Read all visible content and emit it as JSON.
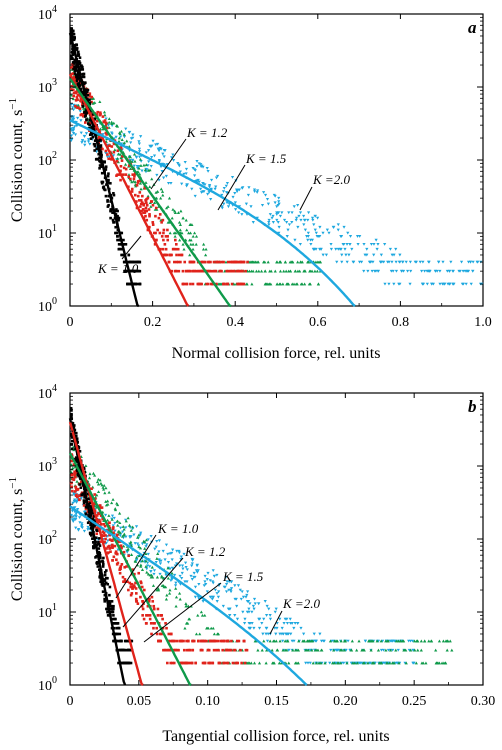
{
  "colors": {
    "K1.0": "#000000",
    "K1.2": "#e0231b",
    "K1.5": "#0f9a4a",
    "K2.0": "#1ea8df"
  },
  "chart_data": [
    {
      "type": "scatter",
      "panel": "a",
      "xlabel": "Normal collision force, rel. units",
      "ylabel": "Collision count, s",
      "ylabel_sup": "−1",
      "yscale": "log",
      "xlim": [
        0,
        1.0
      ],
      "ylim": [
        1,
        10000
      ],
      "x_ticks": [
        "0",
        "0.2",
        "0.4",
        "0.6",
        "0.8",
        "1.0"
      ],
      "x_tick_values": [
        0,
        0.2,
        0.4,
        0.6,
        0.8,
        1.0
      ],
      "y_ticks": [
        {
          "base": "10",
          "exp": "0"
        },
        {
          "base": "10",
          "exp": "1"
        },
        {
          "base": "10",
          "exp": "2"
        },
        {
          "base": "10",
          "exp": "3"
        },
        {
          "base": "10",
          "exp": "4"
        }
      ],
      "series": [
        {
          "name": "K = 1.0",
          "key": "K1.0",
          "label_text": "K = 1.0",
          "fit": {
            "y0": 5500,
            "halfvalue_x": 0.019,
            "curv": 0
          },
          "scatter": {
            "x_max": 0.17,
            "y0": 5000,
            "decay": 0.019
          }
        },
        {
          "name": "K = 1.2",
          "key": "K1.2",
          "label_text": "K = 1.2",
          "fit": {
            "y0": 1500,
            "halfvalue_x": 0.039,
            "curv": 0
          },
          "scatter": {
            "x_max": 0.43,
            "y0": 1300,
            "decay": 0.045
          }
        },
        {
          "name": "K = 1.5",
          "key": "K1.5",
          "label_text": "K = 1.5",
          "fit": {
            "y0": 1300,
            "halfvalue_x": 0.054,
            "curv": 0
          },
          "scatter": {
            "x_max": 0.61,
            "y0": 1200,
            "decay": 0.058
          }
        },
        {
          "name": "K =2.0",
          "key": "K2.0",
          "label_text": "K =2.0",
          "fit": {
            "y0": 350,
            "halfvalue_x": 0.16,
            "curv": 1.15,
            "curv_exp": 4
          },
          "scatter": {
            "x_max": 1.0,
            "y0": 340,
            "decay": 0.17
          }
        }
      ]
    },
    {
      "type": "scatter",
      "panel": "b",
      "xlabel": "Tangential collision force, rel. units",
      "ylabel": "Collision count, s",
      "ylabel_sup": "−1",
      "yscale": "log",
      "xlim": [
        0,
        0.3
      ],
      "ylim": [
        1,
        10000
      ],
      "x_ticks": [
        "0",
        "0.05",
        "0.10",
        "0.15",
        "0.20",
        "0.25",
        "0.30"
      ],
      "x_tick_values": [
        0,
        0.05,
        0.1,
        0.15,
        0.2,
        0.25,
        0.3
      ],
      "y_ticks": [
        {
          "base": "10",
          "exp": "0"
        },
        {
          "base": "10",
          "exp": "1"
        },
        {
          "base": "10",
          "exp": "2"
        },
        {
          "base": "10",
          "exp": "3"
        },
        {
          "base": "10",
          "exp": "4"
        }
      ],
      "series": [
        {
          "name": "K = 1.0",
          "key": "K1.0",
          "label_text": "K = 1.0",
          "fit": {
            "y0": 4500,
            "halfvalue_x": 0.0047,
            "curv": 0
          },
          "scatter": {
            "x_max": 0.045,
            "y0": 4000,
            "decay": 0.005
          }
        },
        {
          "name": "K = 1.2",
          "key": "K1.2",
          "label_text": "K = 1.2",
          "fit": {
            "y0": 4000,
            "halfvalue_x": 0.0063,
            "curv": 0.2,
            "curv_exp": 3
          },
          "scatter": {
            "x_max": 0.13,
            "y0": 900,
            "decay": 0.013
          }
        },
        {
          "name": "K = 1.5",
          "key": "K1.5",
          "label_text": "K = 1.5",
          "fit": {
            "y0": 1500,
            "halfvalue_x": 0.012,
            "curv": 0.3,
            "curv_exp": 3
          },
          "scatter": {
            "x_max": 0.28,
            "y0": 1200,
            "decay": 0.018
          }
        },
        {
          "name": "K =2.0",
          "key": "K2.0",
          "label_text": "K =2.0",
          "fit": {
            "y0": 280,
            "halfvalue_x": 0.034,
            "curv": 0.9,
            "curv_exp": 4
          },
          "scatter": {
            "x_max": 0.25,
            "y0": 280,
            "decay": 0.04
          }
        }
      ]
    }
  ]
}
